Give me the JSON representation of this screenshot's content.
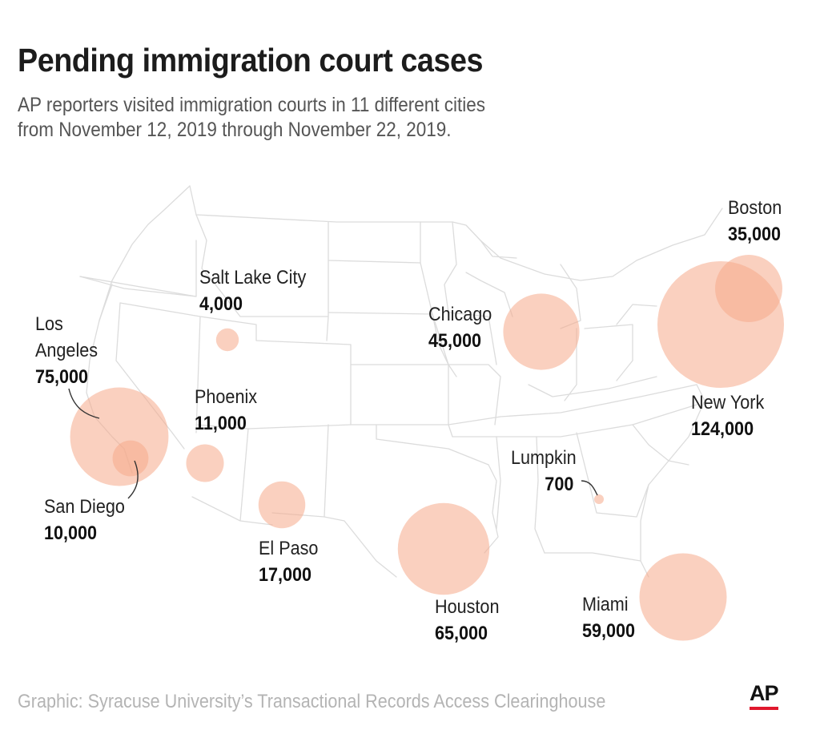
{
  "header": {
    "title": "Pending immigration court cases",
    "subtitle_line1": "AP reporters visited immigration courts in 11 different cities",
    "subtitle_line2": "from November 12, 2019 through November 22, 2019."
  },
  "colors": {
    "bubble_fill": "#f5a98b",
    "border_lines": "#dcdcdc",
    "leader_line": "#333333",
    "brand_red": "#e0182d"
  },
  "cities": [
    {
      "id": "boston",
      "name": "Boston",
      "value": "35,000",
      "cases": 35000
    },
    {
      "id": "salt-lake-city",
      "name": "Salt Lake City",
      "value": "4,000",
      "cases": 4000
    },
    {
      "id": "chicago",
      "name": "Chicago",
      "value": "45,000",
      "cases": 45000
    },
    {
      "id": "los-angeles",
      "name": "Los Angeles",
      "value": "75,000",
      "cases": 75000
    },
    {
      "id": "phoenix",
      "name": "Phoenix",
      "value": "11,000",
      "cases": 11000
    },
    {
      "id": "new-york",
      "name": "New York",
      "value": "124,000",
      "cases": 124000
    },
    {
      "id": "lumpkin",
      "name": "Lumpkin",
      "value": "700",
      "cases": 700
    },
    {
      "id": "san-diego",
      "name": "San Diego",
      "value": "10,000",
      "cases": 10000
    },
    {
      "id": "el-paso",
      "name": "El Paso",
      "value": "17,000",
      "cases": 17000
    },
    {
      "id": "houston",
      "name": "Houston",
      "value": "65,000",
      "cases": 65000
    },
    {
      "id": "miami",
      "name": "Miami",
      "value": "59,000",
      "cases": 59000
    }
  ],
  "footer": {
    "source": "Graphic: Syracuse University’s Transactional Records Access Clearinghouse",
    "logo": "AP"
  }
}
